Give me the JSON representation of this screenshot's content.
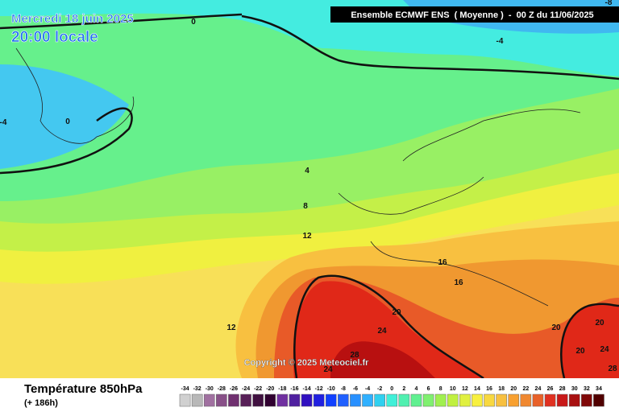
{
  "header": {
    "date": "Mercredi 18 juin 2025",
    "time": "20:00 locale",
    "model": "Ensemble ECMWF ENS  ( Moyenne )  -  00 Z du 11/06/2025"
  },
  "contour_labels": [
    "0",
    "-4",
    "-8",
    "0",
    "-4",
    "4",
    "8",
    "12",
    "16",
    "16",
    "20",
    "24",
    "28",
    "24",
    "12",
    "20",
    "20",
    "20",
    "24",
    "28"
  ],
  "copyright": "Copyright © 2025 Meteociel.fr",
  "footer": {
    "title": "Température 850hPa",
    "lead": "(+ 186h)"
  },
  "legend": {
    "labels": [
      -34,
      -32,
      -30,
      -28,
      -26,
      -24,
      -22,
      -20,
      -18,
      -16,
      -14,
      -12,
      -10,
      -8,
      -6,
      -4,
      -2,
      0,
      2,
      4,
      6,
      8,
      10,
      12,
      14,
      16,
      18,
      20,
      22,
      24,
      26,
      28,
      30,
      32,
      34
    ]
  }
}
